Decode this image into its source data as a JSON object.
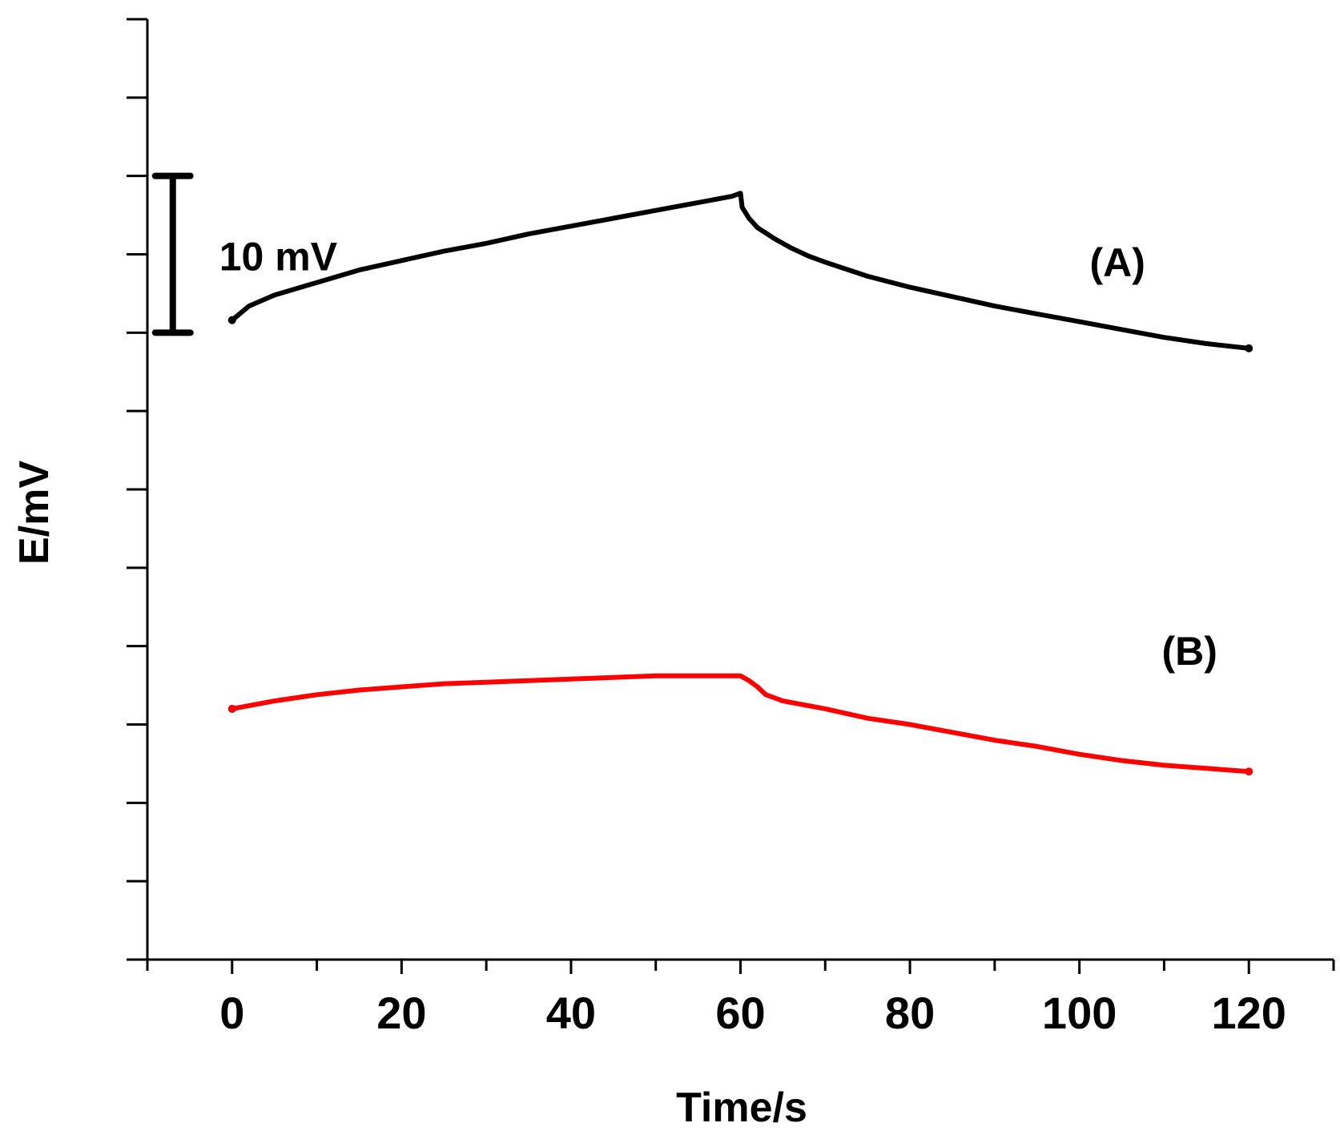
{
  "chart_data": {
    "type": "line",
    "title": "",
    "xlabel": "Time/s",
    "ylabel": "E/mV",
    "xlim": [
      -10,
      130
    ],
    "ylim": [
      -60,
      0
    ],
    "xticks": [
      0,
      20,
      40,
      60,
      80,
      100,
      120
    ],
    "x_minor_step": 10,
    "y_tick_step": 5,
    "y_tick_labels_shown": false,
    "grid": false,
    "scale_bar": {
      "label": "10 mV",
      "from": -20,
      "to": -10,
      "x": -7
    },
    "series": [
      {
        "name": "(A)",
        "color": "#000000",
        "x": [
          0,
          2,
          5,
          10,
          15,
          20,
          25,
          30,
          35,
          40,
          45,
          50,
          55,
          59,
          60,
          60.2,
          61,
          62,
          64,
          66,
          68,
          70,
          75,
          80,
          85,
          90,
          95,
          100,
          105,
          110,
          115,
          120
        ],
        "y": [
          -19.2,
          -18.3,
          -17.6,
          -16.8,
          -16.0,
          -15.4,
          -14.8,
          -14.3,
          -13.7,
          -13.2,
          -12.7,
          -12.2,
          -11.7,
          -11.3,
          -11.1,
          -12.0,
          -12.7,
          -13.3,
          -14.0,
          -14.6,
          -15.1,
          -15.5,
          -16.4,
          -17.1,
          -17.7,
          -18.3,
          -18.8,
          -19.3,
          -19.8,
          -20.3,
          -20.7,
          -21.0
        ]
      },
      {
        "name": "(B)",
        "color": "#ff0000",
        "x": [
          0,
          5,
          10,
          15,
          20,
          25,
          30,
          35,
          40,
          45,
          50,
          55,
          60,
          61,
          62,
          63,
          65,
          70,
          75,
          80,
          85,
          90,
          95,
          100,
          105,
          110,
          115,
          120
        ],
        "y": [
          -44.0,
          -43.5,
          -43.1,
          -42.8,
          -42.6,
          -42.4,
          -42.3,
          -42.2,
          -42.1,
          -42.0,
          -41.9,
          -41.9,
          -41.9,
          -42.2,
          -42.6,
          -43.1,
          -43.5,
          -44.0,
          -44.6,
          -45.0,
          -45.5,
          -46.0,
          -46.4,
          -46.9,
          -47.3,
          -47.6,
          -47.8,
          -48.0
        ]
      }
    ]
  }
}
